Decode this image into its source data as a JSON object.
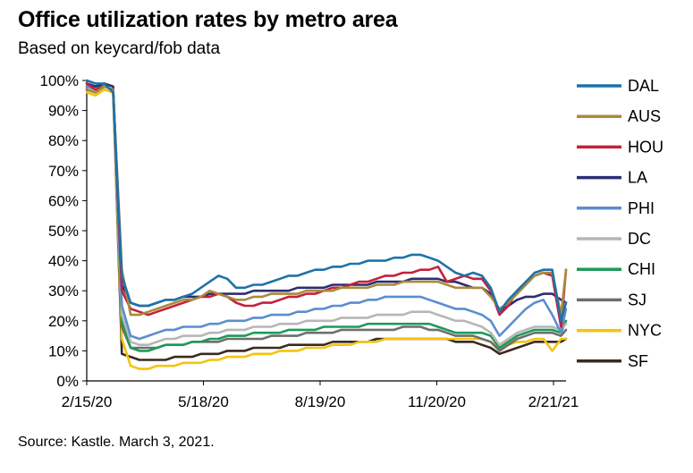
{
  "chart_data": {
    "type": "line",
    "title": "Office utilization rates by metro area",
    "subtitle": "Based on keycard/fob data",
    "source": "Source: Kastle. March 3, 2021.",
    "ylim": [
      0,
      100
    ],
    "yticks": [
      "0%",
      "10%",
      "20%",
      "30%",
      "40%",
      "50%",
      "60%",
      "70%",
      "80%",
      "90%",
      "100%"
    ],
    "xlim": [
      "2020-02-15",
      "2021-03-03"
    ],
    "xticks": [
      {
        "label": "2/15/20",
        "date": "2020-02-15"
      },
      {
        "label": "5/18/20",
        "date": "2020-05-18"
      },
      {
        "label": "8/19/20",
        "date": "2020-08-19"
      },
      {
        "label": "11/20/20",
        "date": "2020-11-20"
      },
      {
        "label": "2/21/21",
        "date": "2021-02-21"
      }
    ],
    "legend_position": "right",
    "x": [
      "2020-02-15",
      "2020-02-22",
      "2020-02-29",
      "2020-03-07",
      "2020-03-14",
      "2020-03-21",
      "2020-03-28",
      "2020-04-04",
      "2020-04-11",
      "2020-04-18",
      "2020-04-25",
      "2020-05-02",
      "2020-05-09",
      "2020-05-16",
      "2020-05-23",
      "2020-05-30",
      "2020-06-06",
      "2020-06-13",
      "2020-06-20",
      "2020-06-27",
      "2020-07-04",
      "2020-07-11",
      "2020-07-18",
      "2020-07-25",
      "2020-08-01",
      "2020-08-08",
      "2020-08-15",
      "2020-08-22",
      "2020-08-29",
      "2020-09-05",
      "2020-09-12",
      "2020-09-19",
      "2020-09-26",
      "2020-10-03",
      "2020-10-10",
      "2020-10-17",
      "2020-10-24",
      "2020-10-31",
      "2020-11-07",
      "2020-11-14",
      "2020-11-21",
      "2020-11-28",
      "2020-12-05",
      "2020-12-12",
      "2020-12-19",
      "2020-12-26",
      "2021-01-02",
      "2021-01-09",
      "2021-01-16",
      "2021-01-23",
      "2021-01-30",
      "2021-02-06",
      "2021-02-13",
      "2021-02-20",
      "2021-02-27",
      "2021-03-03"
    ],
    "series": [
      {
        "name": "DAL",
        "color": "#1f72a8",
        "values": [
          100,
          99,
          99,
          96,
          35,
          26,
          25,
          25,
          26,
          27,
          27,
          28,
          29,
          31,
          33,
          35,
          34,
          31,
          31,
          32,
          32,
          33,
          34,
          35,
          35,
          36,
          37,
          37,
          38,
          38,
          39,
          39,
          40,
          40,
          40,
          41,
          41,
          42,
          42,
          41,
          40,
          38,
          36,
          35,
          36,
          35,
          31,
          23,
          27,
          30,
          33,
          36,
          37,
          37,
          20,
          26
        ]
      },
      {
        "name": "AUS",
        "color": "#a88b3c",
        "values": [
          97,
          96,
          98,
          97,
          37,
          22,
          22,
          23,
          24,
          25,
          26,
          27,
          27,
          28,
          30,
          29,
          28,
          27,
          27,
          28,
          28,
          29,
          29,
          29,
          29,
          30,
          30,
          30,
          30,
          31,
          31,
          31,
          31,
          32,
          32,
          32,
          33,
          33,
          33,
          33,
          33,
          32,
          31,
          31,
          31,
          31,
          28,
          24,
          26,
          29,
          32,
          35,
          36,
          36,
          22,
          37
        ]
      },
      {
        "name": "HOU",
        "color": "#c4213c",
        "values": [
          99,
          97,
          98,
          97,
          30,
          24,
          23,
          22,
          23,
          24,
          25,
          26,
          27,
          28,
          28,
          29,
          28,
          26,
          25,
          25,
          26,
          26,
          27,
          28,
          28,
          29,
          29,
          30,
          31,
          31,
          32,
          33,
          33,
          34,
          35,
          35,
          36,
          36,
          37,
          37,
          38,
          33,
          34,
          35,
          34,
          34,
          30,
          22,
          25,
          30,
          33,
          35,
          36,
          35,
          18,
          37
        ]
      },
      {
        "name": "LA",
        "color": "#2c2d73",
        "values": [
          99,
          98,
          99,
          98,
          32,
          26,
          25,
          25,
          26,
          27,
          27,
          28,
          28,
          28,
          29,
          29,
          29,
          29,
          29,
          30,
          30,
          30,
          30,
          30,
          31,
          31,
          31,
          31,
          32,
          32,
          32,
          32,
          32,
          33,
          33,
          33,
          33,
          34,
          34,
          34,
          34,
          33,
          33,
          32,
          31,
          31,
          29,
          23,
          25,
          27,
          28,
          28,
          29,
          29,
          27,
          26
        ]
      },
      {
        "name": "PHI",
        "color": "#5a8ed0",
        "values": [
          98,
          97,
          98,
          97,
          25,
          15,
          14,
          15,
          16,
          17,
          17,
          18,
          18,
          18,
          19,
          19,
          20,
          20,
          20,
          21,
          21,
          22,
          22,
          22,
          23,
          23,
          24,
          24,
          25,
          25,
          26,
          26,
          27,
          27,
          28,
          28,
          28,
          28,
          28,
          27,
          26,
          25,
          24,
          24,
          23,
          22,
          20,
          15,
          18,
          21,
          24,
          26,
          27,
          22,
          16,
          24
        ]
      },
      {
        "name": "DC",
        "color": "#b6b6b6",
        "values": [
          98,
          97,
          98,
          97,
          22,
          13,
          12,
          12,
          13,
          14,
          14,
          15,
          15,
          15,
          16,
          16,
          17,
          17,
          17,
          18,
          18,
          18,
          19,
          19,
          19,
          20,
          20,
          20,
          20,
          21,
          21,
          21,
          21,
          22,
          22,
          22,
          22,
          23,
          23,
          23,
          22,
          21,
          20,
          20,
          19,
          18,
          16,
          12,
          14,
          16,
          17,
          18,
          18,
          18,
          17,
          19
        ]
      },
      {
        "name": "CHI",
        "color": "#1d9a56",
        "values": [
          99,
          98,
          98,
          97,
          20,
          11,
          10,
          10,
          11,
          12,
          12,
          12,
          13,
          13,
          14,
          14,
          15,
          15,
          15,
          16,
          16,
          16,
          16,
          17,
          17,
          17,
          17,
          18,
          18,
          18,
          18,
          18,
          19,
          19,
          19,
          19,
          19,
          19,
          19,
          19,
          18,
          17,
          16,
          16,
          16,
          16,
          15,
          11,
          13,
          15,
          16,
          17,
          17,
          17,
          16,
          20
        ]
      },
      {
        "name": "SJ",
        "color": "#6e6e6e",
        "values": [
          98,
          97,
          98,
          97,
          18,
          11,
          11,
          11,
          11,
          12,
          12,
          12,
          13,
          13,
          13,
          13,
          14,
          14,
          14,
          14,
          14,
          15,
          15,
          15,
          15,
          16,
          16,
          16,
          16,
          17,
          17,
          17,
          17,
          17,
          17,
          17,
          18,
          18,
          18,
          17,
          17,
          16,
          15,
          15,
          15,
          14,
          13,
          10,
          12,
          14,
          15,
          16,
          16,
          16,
          15,
          17
        ]
      },
      {
        "name": "NYC",
        "color": "#f2c40f",
        "values": [
          96,
          95,
          97,
          96,
          14,
          5,
          4,
          4,
          5,
          5,
          5,
          6,
          6,
          6,
          7,
          7,
          8,
          8,
          8,
          9,
          9,
          9,
          10,
          10,
          10,
          11,
          11,
          11,
          12,
          12,
          12,
          13,
          13,
          13,
          14,
          14,
          14,
          14,
          14,
          14,
          14,
          14,
          14,
          14,
          14,
          14,
          13,
          11,
          12,
          13,
          13,
          14,
          14,
          10,
          14,
          14
        ]
      },
      {
        "name": "SF",
        "color": "#3a2a20",
        "values": [
          97,
          96,
          98,
          97,
          9,
          8,
          7,
          7,
          7,
          7,
          8,
          8,
          8,
          9,
          9,
          9,
          10,
          10,
          10,
          11,
          11,
          11,
          11,
          12,
          12,
          12,
          12,
          12,
          13,
          13,
          13,
          13,
          13,
          14,
          14,
          14,
          14,
          14,
          14,
          14,
          14,
          14,
          13,
          13,
          13,
          12,
          11,
          9,
          10,
          11,
          12,
          13,
          13,
          13,
          13,
          14
        ]
      }
    ]
  }
}
